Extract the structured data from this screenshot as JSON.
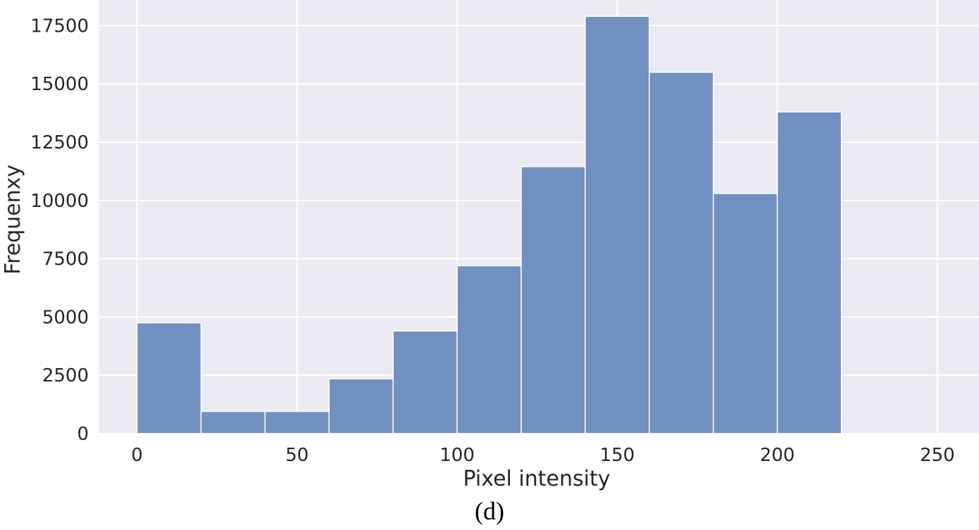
{
  "chart_data": {
    "type": "bar",
    "subtype": "histogram",
    "bin_edges": [
      0,
      20,
      40,
      60,
      80,
      100,
      120,
      140,
      160,
      180,
      200,
      220
    ],
    "values": [
      4750,
      950,
      950,
      2350,
      4400,
      7200,
      11450,
      17900,
      15500,
      10300,
      13800
    ],
    "xlabel": "Pixel intensity",
    "ylabel": "Frequenxy",
    "xlim": [
      -12,
      263
    ],
    "ylim": [
      0,
      18600
    ],
    "xticks": [
      0,
      50,
      100,
      150,
      200,
      250
    ],
    "yticks": [
      0,
      2500,
      5000,
      7500,
      10000,
      12500,
      15000,
      17500
    ],
    "grid": true,
    "bar_color": "#7090c0",
    "background_color": "#eaeaf2",
    "grid_color": "#ffffff"
  },
  "caption": "(d)"
}
